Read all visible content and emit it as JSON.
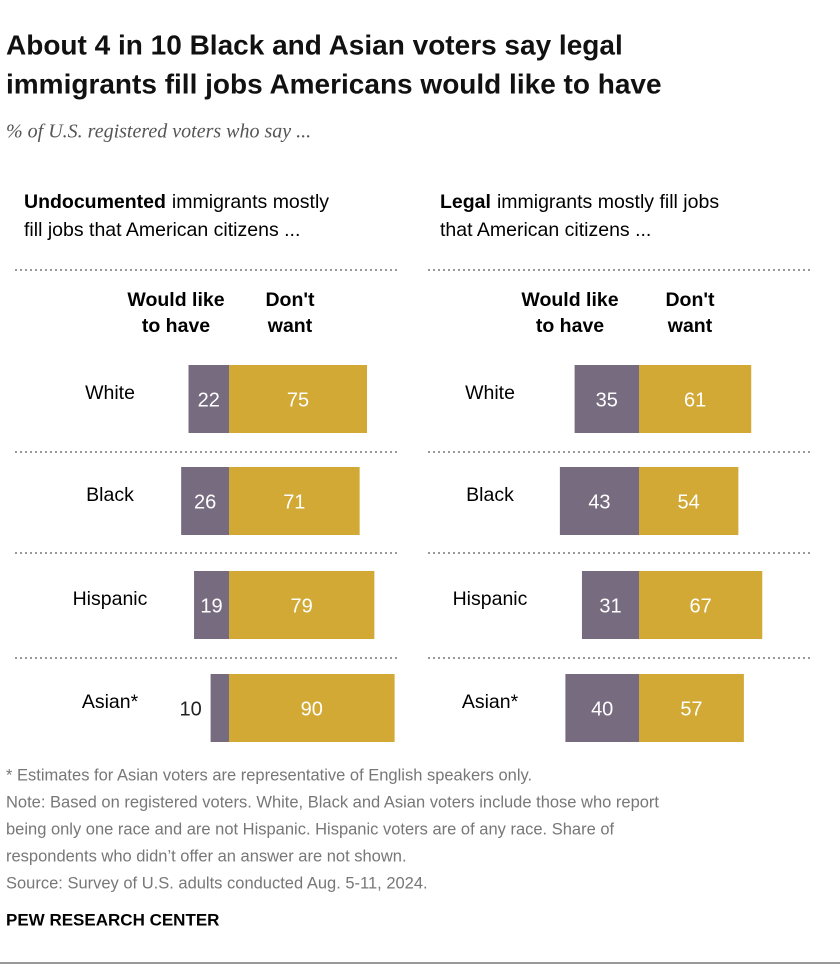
{
  "header": {
    "title": [
      "About 4 in 10 Black and Asian voters say legal",
      "immigrants fill jobs Americans would like to have"
    ],
    "subtitle": "% of U.S. registered voters who say ..."
  },
  "chart_data": [
    {
      "type": "diverging_bar",
      "title_bold": "Undocumented",
      "title": [
        "immigrants mostly",
        "fill jobs that American citizens ..."
      ],
      "categories": [
        "White",
        "Black",
        "Hispanic",
        "Asian*"
      ],
      "series": [
        {
          "name": [
            "Would like",
            "to have"
          ],
          "color": "#776b80",
          "values": [
            22,
            26,
            19,
            10
          ]
        },
        {
          "name": [
            "Don't",
            "want"
          ],
          "color": "#d2a935",
          "values": [
            75,
            71,
            79,
            90
          ]
        }
      ]
    },
    {
      "type": "diverging_bar",
      "title_bold": "Legal",
      "title": [
        "immigrants mostly fill jobs",
        "that American citizens ..."
      ],
      "categories": [
        "White",
        "Black",
        "Hispanic",
        "Asian*"
      ],
      "series": [
        {
          "name": [
            "Would like",
            "to have"
          ],
          "color": "#776b80",
          "values": [
            35,
            43,
            31,
            40
          ]
        },
        {
          "name": [
            "Don't",
            "want"
          ],
          "color": "#d2a935",
          "values": [
            61,
            54,
            67,
            57
          ]
        }
      ]
    }
  ],
  "footer": {
    "lines": [
      "* Estimates for Asian voters are representative of English speakers only.",
      "Note: Based on registered voters. White, Black and Asian voters include those who report",
      "being only one race and are not Hispanic. Hispanic voters are of any race. Share of",
      "respondents who didn’t offer an answer are not shown.",
      "Source: Survey of U.S. adults conducted Aug. 5-11, 2024."
    ],
    "brand": "PEW RESEARCH CENTER"
  }
}
